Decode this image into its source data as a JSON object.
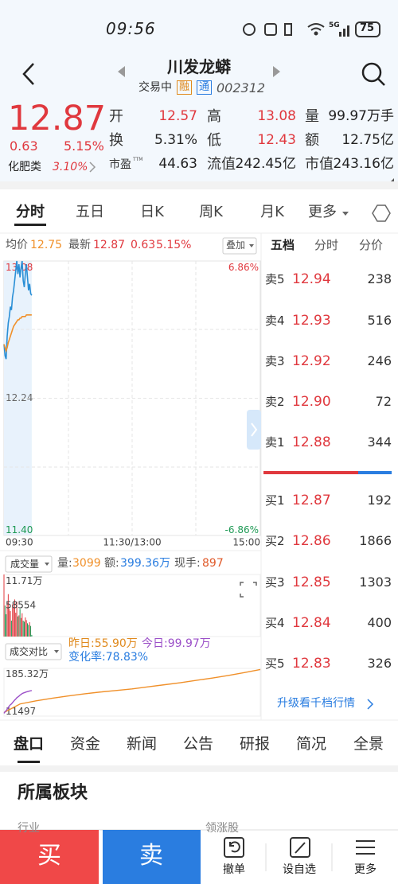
{
  "status": {
    "time": "09:56",
    "network": "5G",
    "battery": "75"
  },
  "header": {
    "title": "川发龙蟒",
    "state": "交易中",
    "tags": [
      "融",
      "通"
    ],
    "code": "002312"
  },
  "quote": {
    "price": "12.87",
    "change": "0.63",
    "change_pct": "5.15%",
    "sector": "化肥类",
    "sector_pct": "3.10%"
  },
  "stats": {
    "rows": [
      [
        {
          "label": "开",
          "value": "12.57"
        },
        {
          "label": "高",
          "value": "13.08"
        },
        {
          "label": "量",
          "value": "99.97万手"
        }
      ],
      [
        {
          "label": "换",
          "value": "5.31%"
        },
        {
          "label": "低",
          "value": "12.43"
        },
        {
          "label": "额",
          "value": "12.75亿"
        }
      ],
      [
        {
          "label": "市盈",
          "sup": "TTM",
          "value": "44.63"
        },
        {
          "label": "流值",
          "value": "242.45亿"
        },
        {
          "label": "市值",
          "value": "243.16亿"
        }
      ]
    ]
  },
  "tabs": [
    "分时",
    "五日",
    "日K",
    "周K",
    "月K",
    "更多"
  ],
  "chart_info": {
    "avg_label": "均价",
    "avg": "12.75",
    "last_label": "最新",
    "last": "12.87",
    "change": "0.63",
    "change_pct": "5.15%",
    "overlay": "叠加"
  },
  "side_tabs": [
    "五档",
    "分时",
    "分价"
  ],
  "order_book": {
    "asks": [
      {
        "label": "卖5",
        "price": "12.94",
        "volume": "238"
      },
      {
        "label": "卖4",
        "price": "12.93",
        "volume": "516"
      },
      {
        "label": "卖3",
        "price": "12.92",
        "volume": "246"
      },
      {
        "label": "卖2",
        "price": "12.90",
        "volume": "72"
      },
      {
        "label": "卖1",
        "price": "12.88",
        "volume": "344"
      }
    ],
    "bids": [
      {
        "label": "买1",
        "price": "12.87",
        "volume": "192"
      },
      {
        "label": "买2",
        "price": "12.86",
        "volume": "1866"
      },
      {
        "label": "买3",
        "price": "12.85",
        "volume": "1303"
      },
      {
        "label": "买4",
        "price": "12.84",
        "volume": "400"
      },
      {
        "label": "买5",
        "price": "12.83",
        "volume": "326"
      }
    ]
  },
  "intraday": {
    "type": "line",
    "x": [
      "09:30",
      "09:31",
      "09:32",
      "09:33",
      "09:34",
      "09:35",
      "09:36",
      "09:37",
      "09:38",
      "09:39",
      "09:40",
      "09:41",
      "09:42",
      "09:43",
      "09:44",
      "09:45",
      "09:46",
      "09:47",
      "09:48",
      "09:49",
      "09:50",
      "09:51",
      "09:52",
      "09:53",
      "09:54",
      "09:55",
      "09:56"
    ],
    "series": [
      {
        "color": "#2a8fd6",
        "values": [
          12.57,
          12.5,
          12.48,
          12.62,
          12.7,
          12.74,
          12.8,
          12.78,
          12.86,
          12.9,
          12.96,
          13.02,
          13.08,
          13.0,
          13.06,
          12.98,
          13.04,
          13.08,
          12.96,
          12.92,
          13.0,
          13.06,
          12.98,
          12.9,
          12.94,
          12.88,
          12.87
        ]
      },
      {
        "color": "#f0902a",
        "values": [
          12.57,
          12.55,
          12.53,
          12.55,
          12.58,
          12.6,
          12.62,
          12.64,
          12.66,
          12.68,
          12.69,
          12.7,
          12.71,
          12.72,
          12.72,
          12.73,
          12.73,
          12.74,
          12.74,
          12.74,
          12.74,
          12.75,
          12.75,
          12.75,
          12.75,
          12.75,
          12.75
        ]
      }
    ],
    "xlim": [
      "09:30",
      "15:00"
    ],
    "xticks": [
      "09:30",
      "11:30/13:00",
      "15:00"
    ],
    "ylim": [
      11.4,
      13.08
    ],
    "yticks": [
      13.08,
      12.24,
      {
        "value": 11.4,
        "label": "11.40"
      }
    ],
    "y2lim": [
      -6.86,
      6.86
    ],
    "y2ticks": [
      {
        "value": 6.86,
        "label": "6.86%"
      },
      {
        "value": -6.86,
        "label": "-6.86%"
      }
    ]
  },
  "volume": {
    "type": "bar",
    "title": "成交量",
    "vol_label": "量:",
    "vol": "3099",
    "amount_label": "额:",
    "amount": "399.36万",
    "hand_label": "现手:",
    "hand": "897",
    "colors": {
      "up": "#e0383e",
      "down": "#1f9a55"
    },
    "values": [
      117100,
      58554,
      42000,
      65000,
      80000,
      52000,
      48000,
      30000,
      61000,
      55000,
      70000,
      45000,
      66000,
      38000,
      40000,
      52000,
      35000,
      44000,
      30000,
      28000,
      36000,
      31000,
      25000,
      22000,
      27000,
      20000,
      3099
    ],
    "ylim": [
      0,
      117100
    ],
    "yticks": [
      {
        "value": 117100,
        "label": "11.71万"
      },
      58554
    ]
  },
  "ratio": {
    "type": "line",
    "title": "成交对比",
    "yesterday": "昨日:55.90万",
    "today": "今日:99.97万",
    "change_rate": "变化率:78.83%",
    "ylim": [
      11497,
      1853200
    ],
    "yticks": [
      {
        "value": 1853200,
        "label": "185.32万"
      },
      11497
    ],
    "series": [
      {
        "color": "#f0902a",
        "x": [
          "09:30",
          "09:45",
          "10:00",
          "10:15",
          "10:30",
          "10:45",
          "11:00",
          "11:15",
          "11:30",
          "13:15",
          "13:30",
          "13:45",
          "14:00",
          "14:15",
          "14:30",
          "14:45",
          "15:00"
        ],
        "values": [
          150000,
          480000,
          600000,
          700000,
          790000,
          870000,
          940000,
          1000000,
          1060000,
          1140000,
          1220000,
          1300000,
          1390000,
          1480000,
          1580000,
          1690000,
          1810000
        ]
      },
      {
        "color": "#9b4fc8",
        "x": [
          "09:30",
          "09:31",
          "09:32",
          "09:33",
          "09:34",
          "09:35",
          "09:36",
          "09:37",
          "09:38",
          "09:39",
          "09:40",
          "09:41",
          "09:42",
          "09:43",
          "09:44",
          "09:45",
          "09:46",
          "09:47",
          "09:48",
          "09:49",
          "09:50",
          "09:51",
          "09:52",
          "09:53",
          "09:54",
          "09:55",
          "09:56"
        ],
        "values": [
          120000,
          180000,
          220000,
          280000,
          350000,
          400000,
          450000,
          480000,
          530000,
          580000,
          630000,
          670000,
          720000,
          750000,
          780000,
          820000,
          850000,
          880000,
          900000,
          915000,
          930000,
          945000,
          958000,
          970000,
          980000,
          990000,
          999700
        ]
      }
    ]
  },
  "upgrade": "升级看千档行情",
  "bottom_tabs": [
    "盘口",
    "资金",
    "新闻",
    "公告",
    "研报",
    "简况",
    "全景"
  ],
  "section": {
    "title": "所属板块",
    "col1": "行业",
    "col2": "领涨股"
  },
  "footer": {
    "buy": "买",
    "sell": "卖",
    "actions": [
      "撤单",
      "设自选",
      "更多"
    ]
  }
}
